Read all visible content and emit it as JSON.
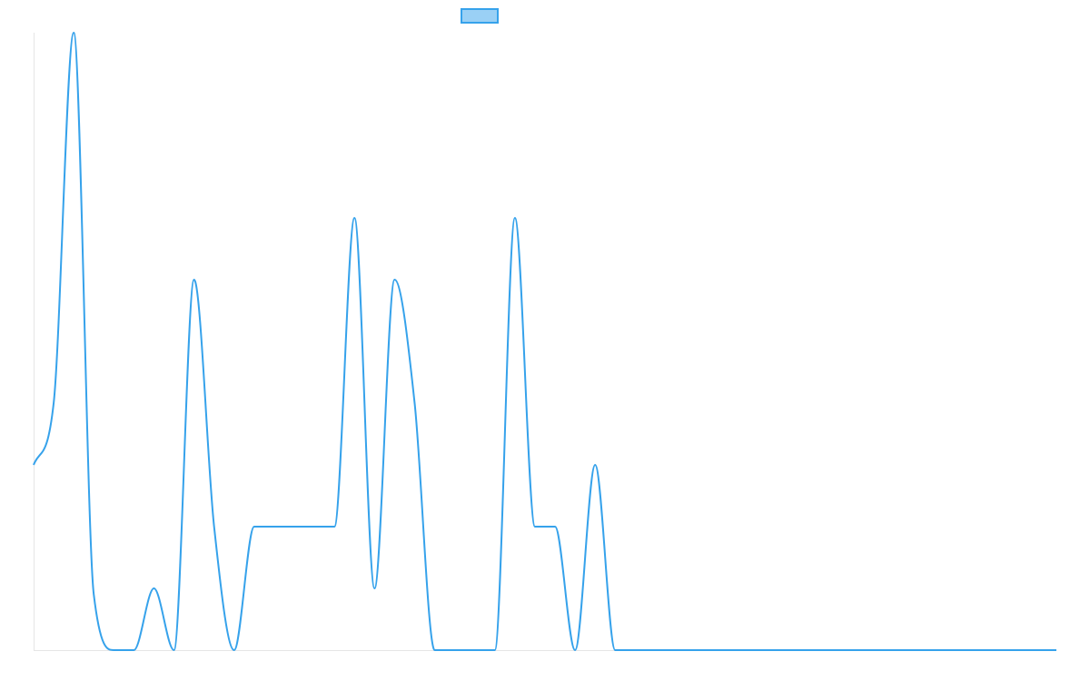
{
  "colors": {
    "series": "#36a2eb",
    "series_fill": "#9ad0f5",
    "axis": "#e5e5e5"
  },
  "chart_data": {
    "type": "line",
    "title": "",
    "xlabel": "",
    "ylabel": "",
    "x": [
      1,
      2,
      3,
      4,
      5,
      6,
      7,
      8,
      9,
      10,
      11,
      12,
      13,
      14,
      15,
      16,
      17,
      18,
      19,
      20,
      21,
      22,
      23,
      24,
      25,
      26,
      27,
      28,
      29,
      30,
      31,
      32,
      33,
      34,
      35,
      36,
      37,
      38,
      39,
      40,
      41,
      42,
      43,
      44,
      45,
      46,
      47,
      48,
      49,
      50,
      51,
      52
    ],
    "ylim": [
      0,
      10
    ],
    "grid": false,
    "legend": "top",
    "series": [
      {
        "name": "",
        "values": [
          3,
          4,
          10,
          0.9,
          0,
          0,
          1,
          0,
          6,
          2,
          0,
          2,
          2,
          2,
          2,
          2,
          7,
          1,
          6,
          4,
          0,
          0,
          0,
          0,
          7,
          2,
          2,
          0,
          3,
          0,
          0,
          0,
          0,
          0,
          0,
          0,
          0,
          0,
          0,
          0,
          0,
          0,
          0,
          0,
          0,
          0,
          0,
          0,
          0,
          0,
          0,
          0
        ]
      }
    ]
  }
}
